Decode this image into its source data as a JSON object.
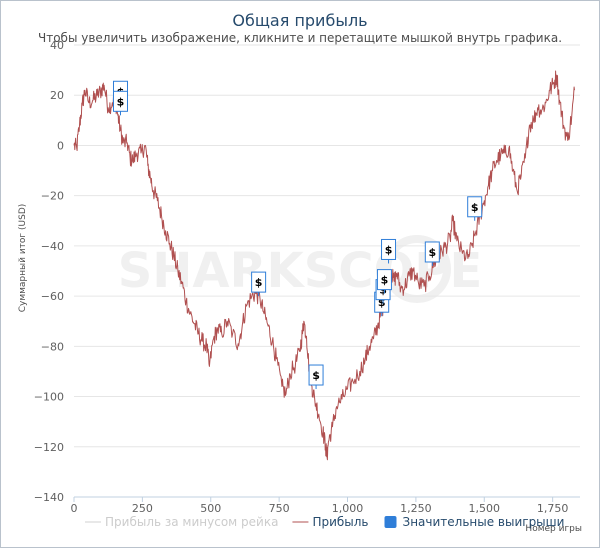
{
  "chart_data": {
    "type": "line",
    "title": "Общая прибыль",
    "subtitle": "Чтобы увеличить изображение, кликните и перетащите мышкой внутрь графика.",
    "watermark": "SHARKSCOPE",
    "ylabel": "Суммарный итог (USD)",
    "xlabel": "Номер игры",
    "xlim": [
      0,
      1850
    ],
    "ylim": [
      -140,
      40
    ],
    "x_ticks": [
      0,
      250,
      500,
      750,
      1000,
      1250,
      1500,
      1750
    ],
    "x_tick_labels": [
      "0",
      "250",
      "500",
      "750",
      "1,000",
      "1,250",
      "1,500",
      "1,750"
    ],
    "y_ticks": [
      40,
      20,
      0,
      -20,
      -40,
      -60,
      -80,
      -100,
      -120,
      -140
    ],
    "y_tick_labels": [
      "40",
      "20",
      "0",
      "−20",
      "−40",
      "−60",
      "−80",
      "−100",
      "−120",
      "−140"
    ],
    "grid": "horizontal",
    "legend_position": "bottom",
    "colors": {
      "profit": "#b05050",
      "rake": "#d0d0d0",
      "bigwins": "#2f7ed8"
    },
    "legend": [
      {
        "label": "Прибыль за минусом рейка",
        "kind": "line",
        "color": "#d0d0d0"
      },
      {
        "label": "Прибыль",
        "kind": "line",
        "color": "#b05050"
      },
      {
        "label": "Значительные выигрыши",
        "kind": "box",
        "color": "#2f7ed8"
      }
    ],
    "series": [
      {
        "name": "Прибыль",
        "points": [
          [
            0,
            0
          ],
          [
            10,
            -1
          ],
          [
            20,
            8
          ],
          [
            30,
            16
          ],
          [
            40,
            22
          ],
          [
            55,
            17
          ],
          [
            70,
            18
          ],
          [
            85,
            20
          ],
          [
            100,
            22
          ],
          [
            110,
            24
          ],
          [
            125,
            15
          ],
          [
            140,
            17
          ],
          [
            150,
            19
          ],
          [
            160,
            12
          ],
          [
            170,
            6
          ],
          [
            180,
            1
          ],
          [
            195,
            1
          ],
          [
            205,
            -5
          ],
          [
            215,
            -6
          ],
          [
            230,
            -3
          ],
          [
            245,
            -3
          ],
          [
            260,
            0
          ],
          [
            270,
            -8
          ],
          [
            280,
            -13
          ],
          [
            290,
            -18
          ],
          [
            305,
            -22
          ],
          [
            320,
            -28
          ],
          [
            335,
            -34
          ],
          [
            350,
            -39
          ],
          [
            365,
            -44
          ],
          [
            380,
            -50
          ],
          [
            395,
            -55
          ],
          [
            410,
            -62
          ],
          [
            425,
            -67
          ],
          [
            440,
            -71
          ],
          [
            455,
            -75
          ],
          [
            470,
            -78
          ],
          [
            485,
            -80
          ],
          [
            495,
            -88
          ],
          [
            510,
            -77
          ],
          [
            525,
            -73
          ],
          [
            540,
            -75
          ],
          [
            560,
            -70
          ],
          [
            580,
            -75
          ],
          [
            600,
            -79
          ],
          [
            615,
            -72
          ],
          [
            630,
            -64
          ],
          [
            650,
            -60
          ],
          [
            665,
            -59
          ],
          [
            680,
            -61
          ],
          [
            695,
            -67
          ],
          [
            710,
            -72
          ],
          [
            725,
            -78
          ],
          [
            740,
            -85
          ],
          [
            760,
            -96
          ],
          [
            775,
            -99
          ],
          [
            790,
            -91
          ],
          [
            810,
            -87
          ],
          [
            825,
            -82
          ],
          [
            835,
            -75
          ],
          [
            840,
            -70
          ],
          [
            850,
            -76
          ],
          [
            860,
            -89
          ],
          [
            870,
            -96
          ],
          [
            880,
            -101
          ],
          [
            895,
            -107
          ],
          [
            910,
            -114
          ],
          [
            920,
            -120
          ],
          [
            925,
            -124
          ],
          [
            930,
            -118
          ],
          [
            945,
            -112
          ],
          [
            960,
            -104
          ],
          [
            980,
            -101
          ],
          [
            1000,
            -97
          ],
          [
            1020,
            -94
          ],
          [
            1045,
            -90
          ],
          [
            1065,
            -85
          ],
          [
            1080,
            -80
          ],
          [
            1095,
            -77
          ],
          [
            1110,
            -72
          ],
          [
            1120,
            -68
          ],
          [
            1130,
            -64
          ],
          [
            1140,
            -59
          ],
          [
            1150,
            -55
          ],
          [
            1160,
            -51
          ],
          [
            1170,
            -54
          ],
          [
            1180,
            -51
          ],
          [
            1195,
            -57
          ],
          [
            1210,
            -56
          ],
          [
            1225,
            -52
          ],
          [
            1240,
            -50
          ],
          [
            1260,
            -55
          ],
          [
            1280,
            -56
          ],
          [
            1300,
            -52
          ],
          [
            1315,
            -47
          ],
          [
            1330,
            -45
          ],
          [
            1345,
            -42
          ],
          [
            1360,
            -40
          ],
          [
            1375,
            -37
          ],
          [
            1385,
            -30
          ],
          [
            1400,
            -38
          ],
          [
            1420,
            -43
          ],
          [
            1440,
            -45
          ],
          [
            1455,
            -40
          ],
          [
            1470,
            -34
          ],
          [
            1485,
            -28
          ],
          [
            1500,
            -22
          ],
          [
            1515,
            -16
          ],
          [
            1530,
            -10
          ],
          [
            1545,
            -6
          ],
          [
            1560,
            -4
          ],
          [
            1575,
            -3
          ],
          [
            1590,
            -1
          ],
          [
            1605,
            -10
          ],
          [
            1620,
            -18
          ],
          [
            1635,
            -12
          ],
          [
            1650,
            -5
          ],
          [
            1665,
            8
          ],
          [
            1680,
            10
          ],
          [
            1695,
            15
          ],
          [
            1710,
            14
          ],
          [
            1725,
            17
          ],
          [
            1740,
            22
          ],
          [
            1755,
            25
          ],
          [
            1765,
            28
          ],
          [
            1775,
            18
          ],
          [
            1790,
            8
          ],
          [
            1805,
            2
          ],
          [
            1820,
            12
          ],
          [
            1830,
            22
          ]
        ]
      }
    ],
    "big_wins": [
      {
        "x": 170,
        "y": 16,
        "label": "$"
      },
      {
        "x": 170,
        "y": 12,
        "label": "$"
      },
      {
        "x": 675,
        "y": -60,
        "label": "$"
      },
      {
        "x": 885,
        "y": -97,
        "label": "$"
      },
      {
        "x": 1125,
        "y": -68,
        "label": "$"
      },
      {
        "x": 1130,
        "y": -63,
        "label": "$"
      },
      {
        "x": 1135,
        "y": -59,
        "label": "$"
      },
      {
        "x": 1150,
        "y": -47,
        "label": "$"
      },
      {
        "x": 1310,
        "y": -48,
        "label": "$"
      },
      {
        "x": 1465,
        "y": -30,
        "label": "$"
      }
    ]
  }
}
